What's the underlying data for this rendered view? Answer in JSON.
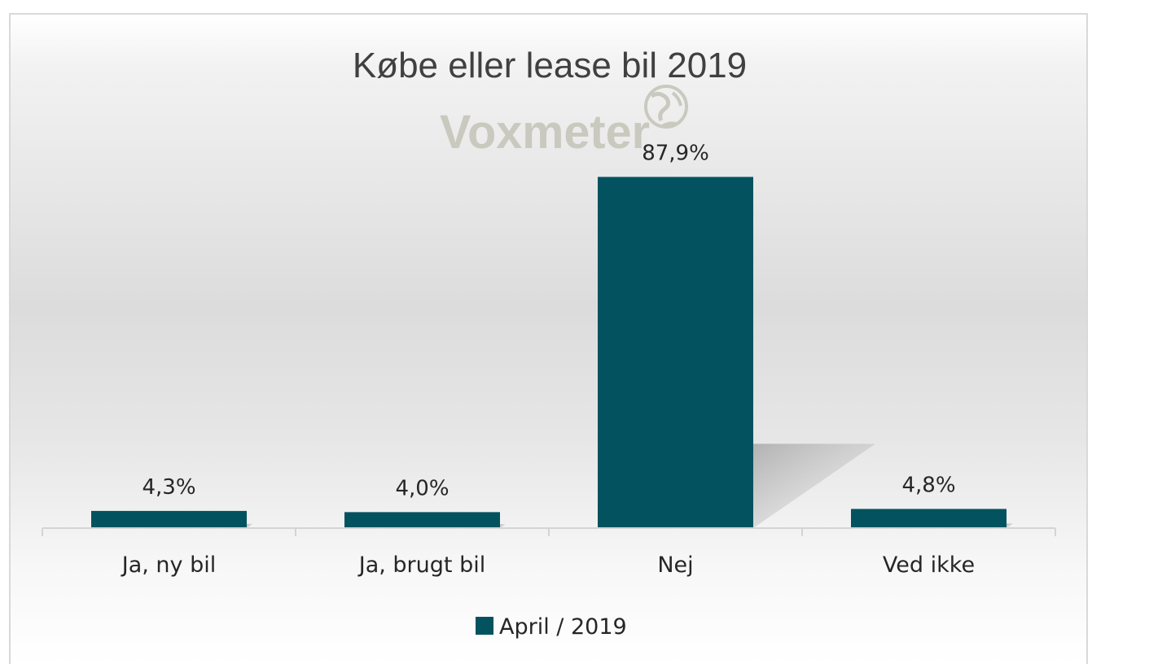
{
  "chart_data": {
    "type": "bar",
    "title": "Købe eller lease bil 2019",
    "categories": [
      "Ja, ny bil",
      "Ja, brugt bil",
      "Nej",
      "Ved ikke"
    ],
    "series": [
      {
        "name": "April / 2019",
        "values": [
          4.3,
          4.0,
          87.9,
          4.8
        ],
        "labels": [
          "4,3%",
          "4,0%",
          "87,9%",
          "4,8%"
        ],
        "color": "#02535f"
      }
    ],
    "ylim": [
      0,
      100
    ],
    "grid": false,
    "legend": "bottom-center",
    "watermark": "Voxmeter"
  }
}
